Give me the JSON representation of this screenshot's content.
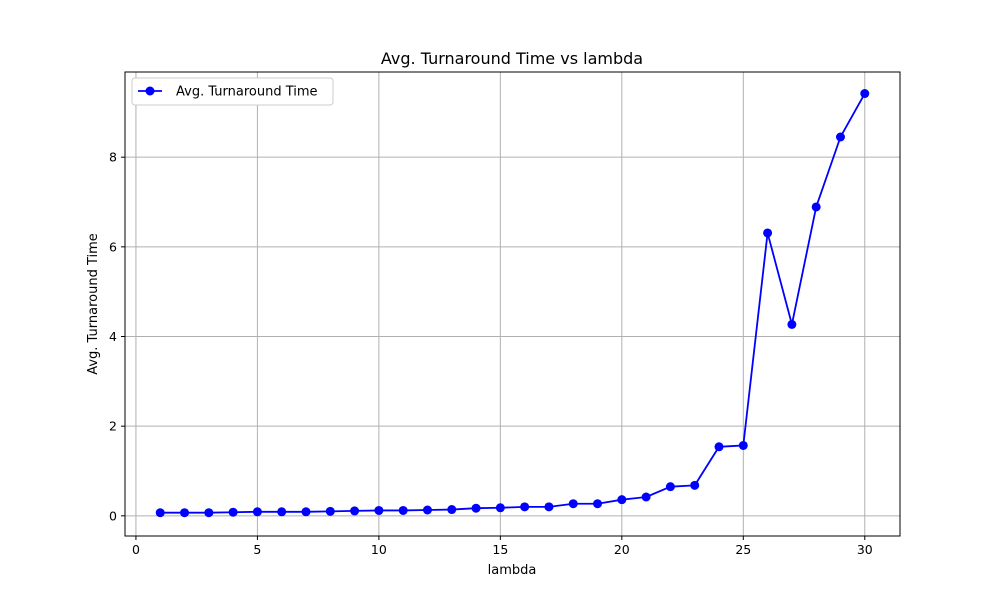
{
  "chart_data": {
    "type": "line",
    "title": "Avg. Turnaround Time vs lambda",
    "xlabel": "lambda",
    "ylabel": "Avg. Turnaround Time",
    "xlim": [
      -0.45,
      31.45
    ],
    "ylim": [
      -0.45,
      9.9
    ],
    "xticks": [
      0,
      5,
      10,
      15,
      20,
      25,
      30
    ],
    "yticks": [
      0,
      2,
      4,
      6,
      8
    ],
    "grid": true,
    "legend_position": "top-left",
    "x": [
      1,
      2,
      3,
      4,
      5,
      6,
      7,
      8,
      9,
      10,
      11,
      12,
      13,
      14,
      15,
      16,
      17,
      18,
      19,
      20,
      21,
      22,
      23,
      24,
      25,
      26,
      27,
      28,
      29,
      30
    ],
    "series": [
      {
        "name": "Avg. Turnaround Time",
        "color": "#0000ff",
        "marker": "circle",
        "values": [
          0.07,
          0.07,
          0.07,
          0.08,
          0.09,
          0.09,
          0.09,
          0.1,
          0.11,
          0.12,
          0.12,
          0.13,
          0.14,
          0.17,
          0.18,
          0.2,
          0.2,
          0.27,
          0.27,
          0.36,
          0.42,
          0.65,
          0.68,
          1.54,
          1.57,
          6.31,
          4.27,
          6.89,
          8.45,
          9.42
        ]
      }
    ]
  }
}
